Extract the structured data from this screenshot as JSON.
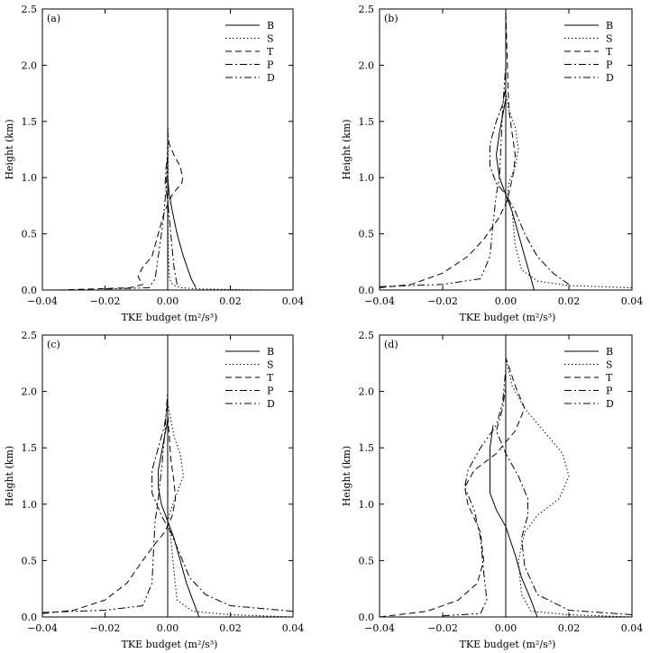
{
  "figure": {
    "series_names": [
      "B",
      "S",
      "T",
      "P",
      "D"
    ],
    "line_styles": {
      "B": "solid",
      "S": "dotted",
      "T": "dashed",
      "P": "dash-dot",
      "D": "dash-dot-dot"
    },
    "line_color": "#000000",
    "background": "#ffffff"
  },
  "chart_data": [
    {
      "type": "line",
      "panel_label": "(a)",
      "xlabel": "TKE budget (m²/s³)",
      "ylabel": "Height (km)",
      "xlim": [
        -0.04,
        0.04
      ],
      "ylim": [
        0,
        2.5
      ],
      "xticks": [
        "-0.04",
        "-0.02",
        "0.00",
        "0.02",
        "0.04"
      ],
      "yticks": [
        "0.0",
        "0.5",
        "1.0",
        "1.5",
        "2.0",
        "2.5"
      ],
      "legend_location": "top-right",
      "series": [
        {
          "name": "B",
          "points": [
            [
              0.009,
              0.02
            ],
            [
              0.0075,
              0.1
            ],
            [
              0.005,
              0.3
            ],
            [
              0.003,
              0.5
            ],
            [
              0.0015,
              0.7
            ],
            [
              0.0005,
              0.85
            ],
            [
              0,
              1.0
            ]
          ]
        },
        {
          "name": "S",
          "points": [
            [
              0.03,
              0
            ],
            [
              0.01,
              0.01
            ],
            [
              0.004,
              0.02
            ],
            [
              0.0015,
              0.05
            ],
            [
              0.0006,
              0.1
            ],
            [
              0.0002,
              0.3
            ],
            [
              0.0001,
              0.6
            ],
            [
              0.0001,
              1.0
            ],
            [
              0.0002,
              1.3
            ],
            [
              0.0001,
              1.45
            ]
          ]
        },
        {
          "name": "T",
          "points": [
            [
              -0.035,
              0
            ],
            [
              -0.012,
              0.02
            ],
            [
              -0.008,
              0.05
            ],
            [
              -0.0095,
              0.12
            ],
            [
              -0.008,
              0.2
            ],
            [
              -0.005,
              0.3
            ],
            [
              -0.003,
              0.5
            ],
            [
              -0.001,
              0.7
            ],
            [
              0.0015,
              0.85
            ],
            [
              0.0045,
              0.95
            ],
            [
              0.0048,
              1.0
            ],
            [
              0.004,
              1.1
            ],
            [
              0.002,
              1.2
            ],
            [
              0.0005,
              1.3
            ],
            [
              0,
              1.4
            ]
          ]
        },
        {
          "name": "P",
          "points": [
            [
              0.003,
              0.05
            ],
            [
              0.002,
              0.2
            ],
            [
              0.001,
              0.5
            ],
            [
              0,
              0.8
            ],
            [
              -0.0008,
              0.95
            ],
            [
              -0.0005,
              1.1
            ],
            [
              0,
              1.2
            ],
            [
              0,
              1.4
            ]
          ]
        },
        {
          "name": "D",
          "points": [
            [
              -0.02,
              0.01
            ],
            [
              -0.006,
              0.02
            ],
            [
              -0.004,
              0.1
            ],
            [
              -0.003,
              0.3
            ],
            [
              -0.0015,
              0.6
            ],
            [
              -0.0005,
              0.9
            ],
            [
              -0.0002,
              1.1
            ],
            [
              0,
              1.3
            ]
          ]
        }
      ]
    },
    {
      "type": "line",
      "panel_label": "(b)",
      "xlabel": "TKE budget (m²/s³)",
      "ylabel": "Height (km)",
      "xlim": [
        -0.04,
        0.04
      ],
      "ylim": [
        0,
        2.5
      ],
      "xticks": [
        "-0.04",
        "-0.02",
        "0.00",
        "0.02",
        "0.04"
      ],
      "yticks": [
        "0.0",
        "0.5",
        "1.0",
        "1.5",
        "2.0",
        "2.5"
      ],
      "legend_location": "top-right",
      "series": [
        {
          "name": "B",
          "points": [
            [
              0.009,
              0
            ],
            [
              0.008,
              0.1
            ],
            [
              0.006,
              0.3
            ],
            [
              0.004,
              0.5
            ],
            [
              0.002,
              0.7
            ],
            [
              0,
              0.85
            ],
            [
              -0.002,
              1.0
            ],
            [
              -0.003,
              1.2
            ],
            [
              -0.002,
              1.4
            ],
            [
              -0.001,
              1.55
            ],
            [
              0,
              1.7
            ]
          ]
        },
        {
          "name": "S",
          "points": [
            [
              0.04,
              0.02
            ],
            [
              0.02,
              0.04
            ],
            [
              0.01,
              0.08
            ],
            [
              0.005,
              0.18
            ],
            [
              0.003,
              0.4
            ],
            [
              0.002,
              0.7
            ],
            [
              0.0005,
              0.85
            ],
            [
              0.001,
              0.95
            ],
            [
              0.003,
              1.1
            ],
            [
              0.004,
              1.25
            ],
            [
              0.003,
              1.45
            ],
            [
              0.001,
              1.6
            ],
            [
              0,
              1.75
            ]
          ]
        },
        {
          "name": "T",
          "points": [
            [
              -0.04,
              0.02
            ],
            [
              -0.03,
              0.05
            ],
            [
              -0.02,
              0.15
            ],
            [
              -0.012,
              0.3
            ],
            [
              -0.007,
              0.45
            ],
            [
              -0.002,
              0.65
            ],
            [
              0.0005,
              0.8
            ],
            [
              0.0025,
              1.05
            ],
            [
              0.003,
              1.2
            ],
            [
              0.002,
              1.4
            ],
            [
              0.001,
              1.6
            ],
            [
              0.0005,
              2.0
            ],
            [
              0,
              2.5
            ]
          ]
        },
        {
          "name": "P",
          "points": [
            [
              0.02,
              0.05
            ],
            [
              0.015,
              0.15
            ],
            [
              0.01,
              0.3
            ],
            [
              0.006,
              0.5
            ],
            [
              0.003,
              0.7
            ],
            [
              0,
              0.85
            ],
            [
              -0.003,
              0.95
            ],
            [
              -0.005,
              1.1
            ],
            [
              -0.005,
              1.3
            ],
            [
              -0.003,
              1.5
            ],
            [
              -0.001,
              1.65
            ],
            [
              0,
              1.8
            ],
            [
              0,
              2.5
            ]
          ]
        },
        {
          "name": "D",
          "points": [
            [
              -0.04,
              0.03
            ],
            [
              -0.02,
              0.05
            ],
            [
              -0.008,
              0.1
            ],
            [
              -0.005,
              0.3
            ],
            [
              -0.004,
              0.6
            ],
            [
              -0.003,
              0.85
            ],
            [
              -0.002,
              1.0
            ],
            [
              -0.0015,
              1.3
            ],
            [
              -0.001,
              1.6
            ],
            [
              0,
              2.0
            ]
          ]
        }
      ]
    },
    {
      "type": "line",
      "panel_label": "(c)",
      "xlabel": "TKE budget (m²/s³)",
      "ylabel": "Height (km)",
      "xlim": [
        -0.04,
        0.04
      ],
      "ylim": [
        0,
        2.5
      ],
      "xticks": [
        "-0.04",
        "-0.02",
        "0.00",
        "0.02",
        "0.04"
      ],
      "yticks": [
        "0.0",
        "0.5",
        "1.0",
        "1.5",
        "2.0",
        "2.5"
      ],
      "legend_location": "top-right",
      "series": [
        {
          "name": "B",
          "points": [
            [
              0.01,
              0
            ],
            [
              0.008,
              0.15
            ],
            [
              0.006,
              0.3
            ],
            [
              0.004,
              0.5
            ],
            [
              0.002,
              0.7
            ],
            [
              0,
              0.85
            ],
            [
              -0.002,
              1.0
            ],
            [
              -0.003,
              1.15
            ],
            [
              -0.003,
              1.3
            ],
            [
              -0.002,
              1.45
            ],
            [
              -0.001,
              1.6
            ],
            [
              0,
              1.75
            ]
          ]
        },
        {
          "name": "S",
          "points": [
            [
              0.04,
              0
            ],
            [
              0.02,
              0.02
            ],
            [
              0.008,
              0.05
            ],
            [
              0.003,
              0.15
            ],
            [
              0.002,
              0.4
            ],
            [
              0.001,
              0.7
            ],
            [
              0,
              0.85
            ],
            [
              0.001,
              0.95
            ],
            [
              0.003,
              1.1
            ],
            [
              0.005,
              1.25
            ],
            [
              0.004,
              1.45
            ],
            [
              0.002,
              1.6
            ],
            [
              0.001,
              1.75
            ],
            [
              0,
              1.9
            ]
          ]
        },
        {
          "name": "T",
          "points": [
            [
              -0.04,
              0.03
            ],
            [
              -0.03,
              0.06
            ],
            [
              -0.02,
              0.15
            ],
            [
              -0.013,
              0.3
            ],
            [
              -0.008,
              0.5
            ],
            [
              -0.004,
              0.65
            ],
            [
              -0.001,
              0.75
            ],
            [
              0.0015,
              0.9
            ],
            [
              0.0025,
              1.05
            ],
            [
              0.002,
              1.2
            ],
            [
              0.001,
              1.4
            ],
            [
              0,
              1.8
            ],
            [
              0,
              2.3
            ]
          ]
        },
        {
          "name": "P",
          "points": [
            [
              0.04,
              0.05
            ],
            [
              0.02,
              0.1
            ],
            [
              0.012,
              0.2
            ],
            [
              0.007,
              0.35
            ],
            [
              0.004,
              0.55
            ],
            [
              0.001,
              0.75
            ],
            [
              -0.002,
              0.9
            ],
            [
              -0.005,
              1.1
            ],
            [
              -0.005,
              1.3
            ],
            [
              -0.003,
              1.5
            ],
            [
              -0.001,
              1.7
            ],
            [
              0,
              1.9
            ]
          ]
        },
        {
          "name": "D",
          "points": [
            [
              -0.04,
              0.04
            ],
            [
              -0.02,
              0.06
            ],
            [
              -0.008,
              0.1
            ],
            [
              -0.005,
              0.3
            ],
            [
              -0.0045,
              0.6
            ],
            [
              -0.004,
              0.85
            ],
            [
              -0.003,
              1.05
            ],
            [
              -0.002,
              1.3
            ],
            [
              -0.001,
              1.6
            ],
            [
              0,
              2.0
            ]
          ]
        }
      ]
    },
    {
      "type": "line",
      "panel_label": "(d)",
      "xlabel": "TKE budget (m²/s³)",
      "ylabel": "Height (km)",
      "xlim": [
        -0.04,
        0.04
      ],
      "ylim": [
        0,
        2.5
      ],
      "xticks": [
        "-0.04",
        "-0.02",
        "0.00",
        "0.02",
        "0.04"
      ],
      "yticks": [
        "0.0",
        "0.5",
        "1.0",
        "1.5",
        "2.0",
        "2.5"
      ],
      "legend_location": "top-right",
      "series": [
        {
          "name": "B",
          "points": [
            [
              0.01,
              0
            ],
            [
              0.008,
              0.15
            ],
            [
              0.005,
              0.35
            ],
            [
              0.003,
              0.55
            ],
            [
              0,
              0.8
            ],
            [
              -0.003,
              0.95
            ],
            [
              -0.005,
              1.1
            ],
            [
              -0.005,
              1.3
            ],
            [
              -0.005,
              1.5
            ],
            [
              -0.004,
              1.7
            ]
          ]
        },
        {
          "name": "S",
          "points": [
            [
              0.04,
              0
            ],
            [
              0.02,
              0.02
            ],
            [
              0.008,
              0.05
            ],
            [
              0.005,
              0.2
            ],
            [
              0.004,
              0.5
            ],
            [
              0.006,
              0.75
            ],
            [
              0.01,
              0.9
            ],
            [
              0.017,
              1.05
            ],
            [
              0.02,
              1.25
            ],
            [
              0.018,
              1.45
            ],
            [
              0.012,
              1.65
            ],
            [
              0.006,
              1.85
            ],
            [
              0.002,
              2.05
            ],
            [
              0,
              2.3
            ]
          ]
        },
        {
          "name": "T",
          "points": [
            [
              -0.04,
              0
            ],
            [
              -0.025,
              0.05
            ],
            [
              -0.015,
              0.15
            ],
            [
              -0.009,
              0.3
            ],
            [
              -0.007,
              0.5
            ],
            [
              -0.008,
              0.75
            ],
            [
              -0.012,
              1.0
            ],
            [
              -0.013,
              1.15
            ],
            [
              -0.01,
              1.3
            ],
            [
              -0.003,
              1.45
            ],
            [
              0.003,
              1.65
            ],
            [
              0.006,
              1.85
            ],
            [
              0.003,
              2.05
            ],
            [
              0,
              2.3
            ]
          ]
        },
        {
          "name": "P",
          "points": [
            [
              0.04,
              0.02
            ],
            [
              0.02,
              0.06
            ],
            [
              0.01,
              0.2
            ],
            [
              0.006,
              0.45
            ],
            [
              0.005,
              0.7
            ],
            [
              0.007,
              0.9
            ],
            [
              0.007,
              1.05
            ],
            [
              0.004,
              1.25
            ],
            [
              0,
              1.45
            ],
            [
              -0.003,
              1.65
            ],
            [
              -0.001,
              1.85
            ],
            [
              0,
              2.05
            ],
            [
              0,
              2.4
            ]
          ]
        },
        {
          "name": "D",
          "points": [
            [
              -0.02,
              0.01
            ],
            [
              -0.008,
              0.03
            ],
            [
              -0.006,
              0.15
            ],
            [
              -0.007,
              0.4
            ],
            [
              -0.008,
              0.7
            ],
            [
              -0.01,
              0.95
            ],
            [
              -0.013,
              1.15
            ],
            [
              -0.012,
              1.3
            ],
            [
              -0.008,
              1.5
            ],
            [
              -0.003,
              1.7
            ],
            [
              -0.001,
              1.9
            ],
            [
              0,
              2.2
            ]
          ]
        }
      ]
    }
  ]
}
